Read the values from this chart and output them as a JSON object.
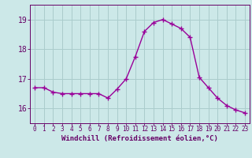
{
  "x": [
    0,
    1,
    2,
    3,
    4,
    5,
    6,
    7,
    8,
    9,
    10,
    11,
    12,
    13,
    14,
    15,
    16,
    17,
    18,
    19,
    20,
    21,
    22,
    23
  ],
  "y": [
    16.7,
    16.7,
    16.55,
    16.5,
    16.5,
    16.5,
    16.5,
    16.5,
    16.35,
    16.65,
    17.0,
    17.75,
    18.6,
    18.9,
    19.0,
    18.85,
    18.7,
    18.4,
    17.05,
    16.7,
    16.35,
    16.1,
    15.95,
    15.85
  ],
  "line_color": "#990099",
  "marker": "+",
  "marker_size": 4,
  "bg_color": "#cce8e8",
  "grid_color": "#aacccc",
  "xlabel": "Windchill (Refroidissement éolien,°C)",
  "xlim": [
    -0.5,
    23.5
  ],
  "ylim": [
    15.5,
    19.5
  ],
  "yticks": [
    16,
    17,
    18,
    19
  ],
  "xticks": [
    0,
    1,
    2,
    3,
    4,
    5,
    6,
    7,
    8,
    9,
    10,
    11,
    12,
    13,
    14,
    15,
    16,
    17,
    18,
    19,
    20,
    21,
    22,
    23
  ],
  "label_color": "#660066",
  "line_width": 1.0,
  "tick_fontsize": 5.5,
  "ylabel_fontsize": 7.0,
  "xlabel_fontsize": 6.5
}
